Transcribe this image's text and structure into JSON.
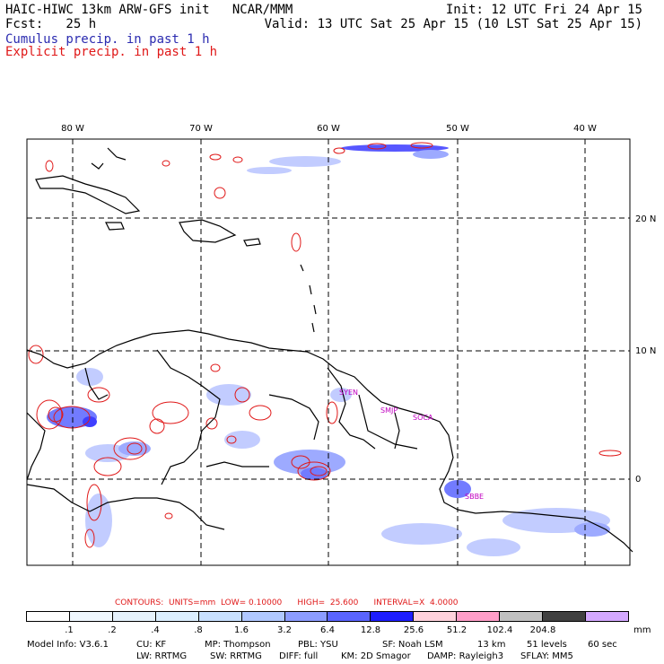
{
  "header": {
    "title_left": "HAIC-HIWC 13km ARW-GFS init   NCAR/MMM",
    "init": "Init: 12 UTC Fri 24 Apr 15",
    "fcst_label": "Fcst:   25 h",
    "valid": "Valid: 13 UTC Sat 25 Apr 15 (10 LST Sat 25 Apr 15)",
    "cumulus_label": "Cumulus precip. in past 1 h",
    "explicit_label": "Explicit precip. in past 1 h"
  },
  "colors": {
    "cumulus": "#2b2bb0",
    "explicit": "#e01818",
    "station": "#c000c0",
    "grid": "#000000",
    "coast": "#000000"
  },
  "map": {
    "lon_labels": [
      "80 W",
      "70 W",
      "60 W",
      "50 W",
      "40 W"
    ],
    "lat_labels": [
      "20 N",
      "10 N",
      "0"
    ],
    "stations": [
      "SYEN",
      "SMJP",
      "SOCA",
      "SBBE"
    ]
  },
  "legend": {
    "contours_text": "CONTOURS:  UNITS=mm  LOW= 0.10000      HIGH=  25.600      INTERVAL=X  4.0000",
    "colors": [
      "#ffffff",
      "#f0f8ff",
      "#e6f2fc",
      "#dcefff",
      "#c8e0ff",
      "#b0c8ff",
      "#8c9cff",
      "#5a64ff",
      "#1e1eff",
      "#ffd2dc",
      "#ff9ec8",
      "#c0c0c0",
      "#404040",
      "#d4a8ff"
    ],
    "ticks": [
      ".1",
      ".2",
      ".4",
      ".8",
      "1.6",
      "3.2",
      "6.4",
      "12.8",
      "25.6",
      "51.2",
      "102.4",
      "204.8"
    ],
    "unit": "mm"
  },
  "model_info": {
    "line1": [
      "Model Info: V3.6.1",
      "CU: KF",
      "MP: Thompson",
      "PBL: YSU",
      "SF: Noah LSM",
      "13 km",
      "51 levels",
      "60 sec"
    ],
    "line2": [
      "LW: RRTMG",
      "SW: RRTMG",
      "DIFF: full",
      "KM: 2D Smagor",
      "DAMP: Rayleigh3",
      "SFLAY: MM5"
    ]
  }
}
